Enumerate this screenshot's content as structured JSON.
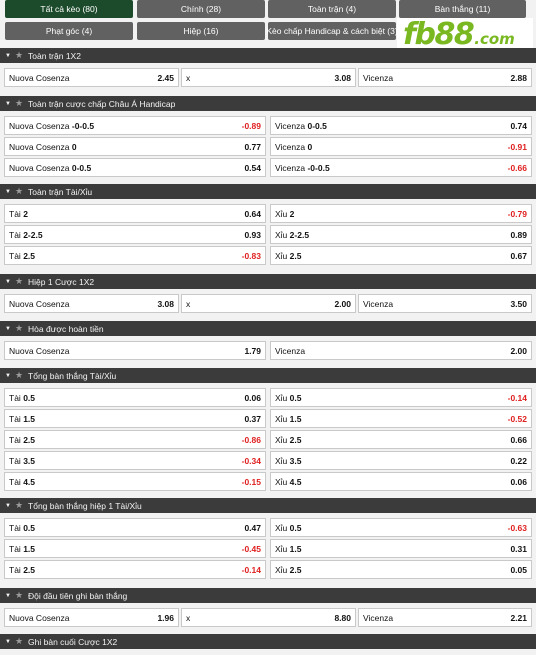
{
  "tabs": [
    {
      "label": "Tất cả kèo (80)",
      "active": true
    },
    {
      "label": "Chính (28)"
    },
    {
      "label": "Toàn trận (4)"
    },
    {
      "label": "Bàn thắng (11)"
    },
    {
      "label": "Phạt góc (4)"
    },
    {
      "label": "Hiệp (16)"
    },
    {
      "label": "Kèo chấp Handicap & cách biệt (3)"
    }
  ],
  "logo": {
    "word": "fb88",
    "tld": ".com"
  },
  "icons": {
    "collapse": "caret-down-icon",
    "favorite": "star-icon"
  },
  "sections": [
    {
      "title": "Toàn trận 1X2",
      "layout": 3,
      "rows": [
        [
          {
            "label": "Nuova Cosenza",
            "odd": "2.45"
          },
          {
            "label": "x",
            "odd": "3.08"
          },
          {
            "label": "Vicenza",
            "odd": "2.88"
          }
        ]
      ]
    },
    {
      "title": "Toàn trận cược chấp Châu Á Handicap",
      "layout": 2,
      "rows": [
        [
          {
            "label": "Nuova Cosenza",
            "line": "-0-0.5",
            "odd": "-0.89",
            "neg": true
          },
          {
            "label": "Vicenza",
            "line": "0-0.5",
            "odd": "0.74"
          }
        ],
        [
          {
            "label": "Nuova Cosenza",
            "line": "0",
            "odd": "0.77"
          },
          {
            "label": "Vicenza",
            "line": "0",
            "odd": "-0.91",
            "neg": true
          }
        ],
        [
          {
            "label": "Nuova Cosenza",
            "line": "0-0.5",
            "odd": "0.54"
          },
          {
            "label": "Vicenza",
            "line": "-0-0.5",
            "odd": "-0.66",
            "neg": true
          }
        ]
      ]
    },
    {
      "title": "Toàn trận Tài/Xỉu",
      "layout": 2,
      "rows": [
        [
          {
            "label": "Tài",
            "line": "2",
            "odd": "0.64"
          },
          {
            "label": "Xỉu",
            "line": "2",
            "odd": "-0.79",
            "neg": true
          }
        ],
        [
          {
            "label": "Tài",
            "line": "2-2.5",
            "odd": "0.93"
          },
          {
            "label": "Xỉu",
            "line": "2-2.5",
            "odd": "0.89"
          }
        ],
        [
          {
            "label": "Tài",
            "line": "2.5",
            "odd": "-0.83",
            "neg": true
          },
          {
            "label": "Xỉu",
            "line": "2.5",
            "odd": "0.67"
          }
        ]
      ]
    },
    {
      "title": "Hiệp 1 Cược 1X2",
      "layout": 3,
      "rows": [
        [
          {
            "label": "Nuova Cosenza",
            "odd": "3.08"
          },
          {
            "label": "x",
            "odd": "2.00"
          },
          {
            "label": "Vicenza",
            "odd": "3.50"
          }
        ]
      ]
    },
    {
      "title": "Hòa được hoàn tiền",
      "layout": 2,
      "rows": [
        [
          {
            "label": "Nuova Cosenza",
            "odd": "1.79"
          },
          {
            "label": "Vicenza",
            "odd": "2.00"
          }
        ]
      ]
    },
    {
      "title": "Tổng bàn thắng Tài/Xỉu",
      "layout": 2,
      "rows": [
        [
          {
            "label": "Tài",
            "line": "0.5",
            "odd": "0.06"
          },
          {
            "label": "Xỉu",
            "line": "0.5",
            "odd": "-0.14",
            "neg": true
          }
        ],
        [
          {
            "label": "Tài",
            "line": "1.5",
            "odd": "0.37"
          },
          {
            "label": "Xỉu",
            "line": "1.5",
            "odd": "-0.52",
            "neg": true
          }
        ],
        [
          {
            "label": "Tài",
            "line": "2.5",
            "odd": "-0.86",
            "neg": true
          },
          {
            "label": "Xỉu",
            "line": "2.5",
            "odd": "0.66"
          }
        ],
        [
          {
            "label": "Tài",
            "line": "3.5",
            "odd": "-0.34",
            "neg": true
          },
          {
            "label": "Xỉu",
            "line": "3.5",
            "odd": "0.22"
          }
        ],
        [
          {
            "label": "Tài",
            "line": "4.5",
            "odd": "-0.15",
            "neg": true
          },
          {
            "label": "Xỉu",
            "line": "4.5",
            "odd": "0.06"
          }
        ]
      ]
    },
    {
      "title": "Tổng bàn thắng hiệp 1 Tài/Xỉu",
      "layout": 2,
      "rows": [
        [
          {
            "label": "Tài",
            "line": "0.5",
            "odd": "0.47"
          },
          {
            "label": "Xỉu",
            "line": "0.5",
            "odd": "-0.63",
            "neg": true
          }
        ],
        [
          {
            "label": "Tài",
            "line": "1.5",
            "odd": "-0.45",
            "neg": true
          },
          {
            "label": "Xỉu",
            "line": "1.5",
            "odd": "0.31"
          }
        ],
        [
          {
            "label": "Tài",
            "line": "2.5",
            "odd": "-0.14",
            "neg": true
          },
          {
            "label": "Xỉu",
            "line": "2.5",
            "odd": "0.05"
          }
        ]
      ]
    },
    {
      "title": "Đội đầu tiên ghi bàn thắng",
      "layout": 3,
      "rows": [
        [
          {
            "label": "Nuova Cosenza",
            "odd": "1.96"
          },
          {
            "label": "x",
            "odd": "8.80"
          },
          {
            "label": "Vicenza",
            "odd": "2.21"
          }
        ]
      ]
    },
    {
      "title": "Ghi bàn cuối Cược 1X2",
      "layout": 3,
      "rows": []
    }
  ]
}
